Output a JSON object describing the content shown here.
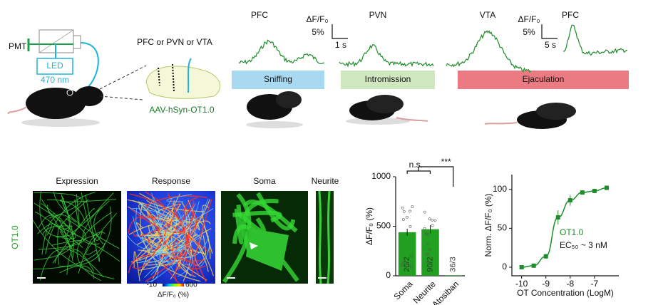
{
  "schematic": {
    "pmt": "PMT",
    "led": "LED",
    "wavelength": "470 nm",
    "regions": "PFC or PVN or VTA",
    "virus": "AAV-hSyn-OT1.0"
  },
  "traces": {
    "labels": [
      "PFC",
      "PVN",
      "VTA",
      "PFC"
    ],
    "scale_bars": [
      {
        "unit": "ΔF/F₀",
        "amplitude": "5%",
        "time": "1 s"
      },
      {
        "unit": "ΔF/F₀",
        "amplitude": "5%",
        "time": "5 s"
      }
    ],
    "behaviors": [
      "Sniffing",
      "Intromission",
      "Ejaculation"
    ]
  },
  "images": {
    "titles": [
      "Expression",
      "Response",
      "Soma",
      "Neurite"
    ],
    "sensor": "OT1.0",
    "colorbar": {
      "min": "-10",
      "max": "600",
      "label": "ΔF/F₀ (%)"
    }
  },
  "chart_data": [
    {
      "type": "bar",
      "categories": [
        "Soma",
        "Neurite",
        "Atosiban"
      ],
      "values": [
        440,
        470,
        5
      ],
      "errors": [
        35,
        40,
        null
      ],
      "sample_sizes": [
        "20/2",
        "90/2",
        "36/3"
      ],
      "annotations": [
        "n.s.",
        "***"
      ],
      "color": "#22a022",
      "ylabel": "ΔF/F₀ (%)",
      "ylim": [
        0,
        1000
      ],
      "yticks": [
        0,
        500,
        1000
      ]
    },
    {
      "type": "line",
      "x": [
        -10,
        -9.5,
        -9,
        -8.5,
        -8,
        -7.5,
        -7,
        -6.5
      ],
      "values": [
        0,
        2,
        14,
        64,
        86,
        96,
        98,
        102
      ],
      "errors": [
        1,
        2,
        3,
        9,
        7,
        2,
        2,
        3
      ],
      "color": "#1e8c2a",
      "ylabel": "Norm. ΔF/F₀ (%)",
      "xlabel": "OT Concentration (LogM)",
      "annotations": [
        "OT1.0",
        "EC₅₀ ~ 3 nM"
      ],
      "xlim": [
        -10.4,
        -6.0
      ],
      "ylim": [
        -11,
        119
      ],
      "xticks": [
        -10,
        -9,
        -8,
        -7
      ],
      "yticks": [
        0,
        50,
        100
      ]
    }
  ]
}
